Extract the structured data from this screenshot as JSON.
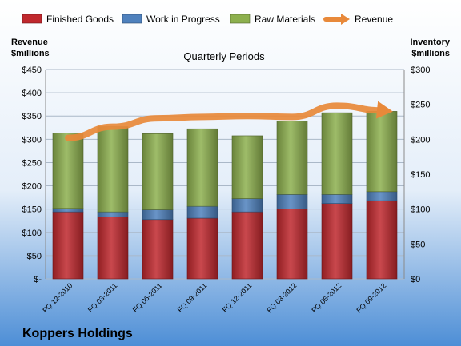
{
  "chart_data": {
    "type": "bar",
    "title": "Quarterly Periods",
    "company": "Koppers Holdings",
    "left_axis_label": [
      "Revenue",
      "$millions"
    ],
    "right_axis_label": [
      "Inventory",
      "$millions"
    ],
    "categories": [
      "FQ 12-2010",
      "FQ 03-2011",
      "FQ 06-2011",
      "FQ 09-2011",
      "FQ 12-2011",
      "FQ 03-2012",
      "FQ 06-2012",
      "FQ 09-2012"
    ],
    "left_axis": {
      "min": 0,
      "max": 450,
      "step": 50,
      "ticks": [
        "$-",
        "$50",
        "$100",
        "$150",
        "$200",
        "$250",
        "$300",
        "$350",
        "$400",
        "$450"
      ]
    },
    "right_axis": {
      "min": 0,
      "max": 300,
      "step": 50,
      "ticks": [
        "$0",
        "$50",
        "$100",
        "$150",
        "$200",
        "$250",
        "$300"
      ]
    },
    "stacked_series_axis": "right",
    "series": [
      {
        "name": "Finished Goods",
        "color": "#c0282d",
        "values": [
          96,
          89,
          85,
          87,
          96,
          100,
          108,
          112
        ]
      },
      {
        "name": "Work in Progress",
        "color": "#4f81bd",
        "values": [
          5,
          7,
          14,
          17,
          19,
          21,
          13,
          13
        ]
      },
      {
        "name": "Raw Materials",
        "color": "#8db04e",
        "values": [
          108,
          122,
          109,
          111,
          90,
          105,
          117,
          115
        ]
      }
    ],
    "line_series": {
      "name": "Revenue",
      "axis": "left",
      "color": "#e8893a",
      "values": [
        303,
        327,
        345,
        348,
        350,
        348,
        372,
        362
      ]
    },
    "legend_position": "top",
    "grid": true,
    "background_gradient": [
      "#ffffff",
      "#4d8ed6"
    ]
  }
}
